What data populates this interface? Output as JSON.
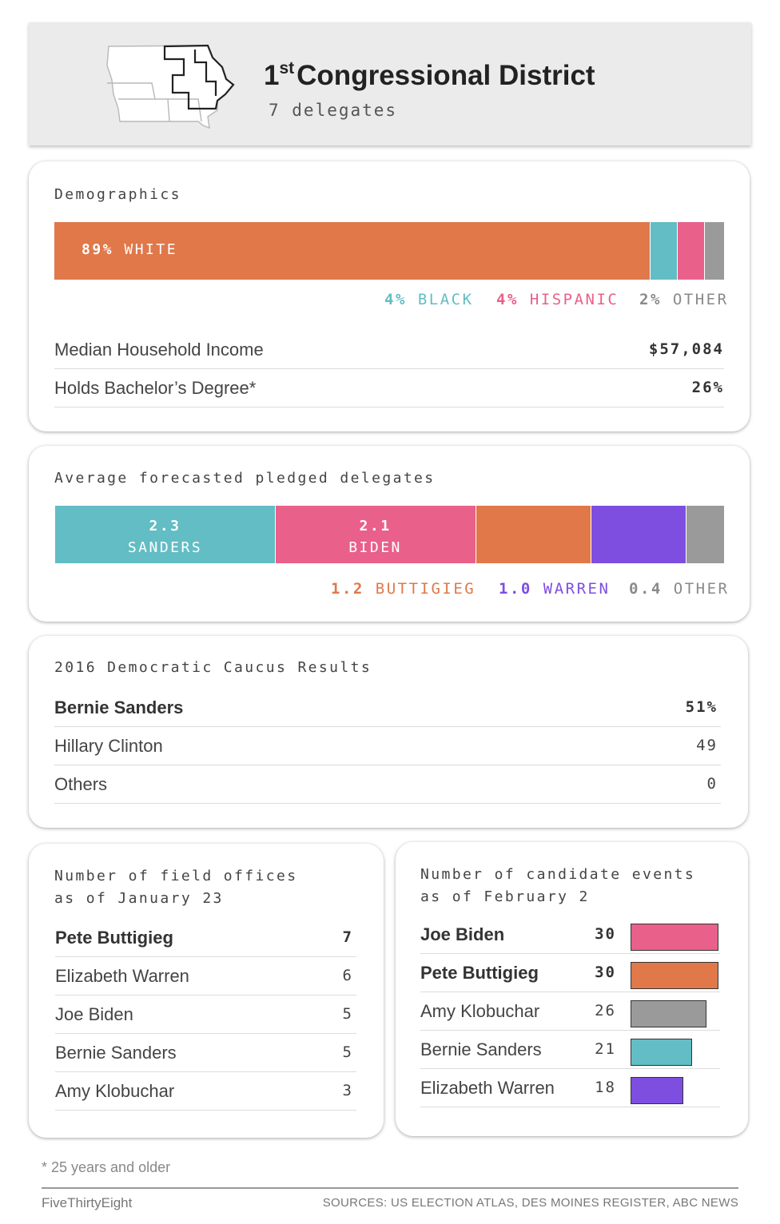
{
  "header": {
    "title_ordinal": "1",
    "title_sup": "st",
    "title_rest": "Congressional District",
    "subtitle": "7 delegates",
    "map_icon": "iowa-district-map-icon"
  },
  "demographics": {
    "title": "Demographics",
    "segments": [
      {
        "name": "WHITE",
        "pct_label": "89%",
        "value": 89,
        "color": "#e0784a"
      },
      {
        "name": "BLACK",
        "pct_label": "4%",
        "value": 4,
        "color": "#62bdc4"
      },
      {
        "name": "HISPANIC",
        "pct_label": "4%",
        "value": 4,
        "color": "#e9608a"
      },
      {
        "name": "OTHER",
        "pct_label": "2%",
        "value": 2,
        "color": "#9a9a9a"
      }
    ],
    "income_label": "Median Household Income",
    "income_value": "$57,084",
    "degree_label": "Holds Bachelor’s Degree*",
    "degree_value": "26%"
  },
  "chart_data": [
    {
      "type": "bar",
      "title": "Average forecasted pledged delegates",
      "categories": [
        "SANDERS",
        "BIDEN",
        "BUTTIGIEG",
        "WARREN",
        "OTHER"
      ],
      "values": [
        2.3,
        2.1,
        1.2,
        1.0,
        0.4
      ],
      "value_labels": [
        "2.3",
        "2.1",
        "1.2",
        "1.0",
        "0.4"
      ],
      "colors": [
        "#62bdc4",
        "#e9608a",
        "#e0784a",
        "#7e4ee0",
        "#9a9a9a"
      ]
    },
    {
      "type": "bar",
      "title_line1": "Number of candidate events",
      "title_line2": "as of February 2",
      "categories": [
        "Joe Biden",
        "Pete Buttigieg",
        "Amy Klobuchar",
        "Bernie Sanders",
        "Elizabeth Warren"
      ],
      "values": [
        30,
        30,
        26,
        21,
        18
      ],
      "colors": [
        "#e9608a",
        "#e0784a",
        "#9a9a9a",
        "#62bdc4",
        "#7e4ee0"
      ],
      "bold_index": [
        0,
        1
      ]
    }
  ],
  "caucus": {
    "title": "2016 Democratic Caucus Results",
    "rows": [
      {
        "name": "Bernie Sanders",
        "value": "51%",
        "bold": true
      },
      {
        "name": "Hillary Clinton",
        "value": "49",
        "bold": false
      },
      {
        "name": "Others",
        "value": "0",
        "bold": false
      }
    ]
  },
  "offices": {
    "title_line1": "Number of field offices",
    "title_line2": "as of January 23",
    "rows": [
      {
        "name": "Pete Buttigieg",
        "value": "7",
        "bold": true
      },
      {
        "name": "Elizabeth Warren",
        "value": "6",
        "bold": false
      },
      {
        "name": "Joe Biden",
        "value": "5",
        "bold": false
      },
      {
        "name": "Bernie Sanders",
        "value": "5",
        "bold": false
      },
      {
        "name": "Amy Klobuchar",
        "value": "3",
        "bold": false
      }
    ]
  },
  "footer": {
    "footnote": "* 25 years and older",
    "brand": "FiveThirtyEight",
    "sources": "SOURCES: US ELECTION ATLAS, DES MOINES REGISTER, ABC NEWS"
  }
}
